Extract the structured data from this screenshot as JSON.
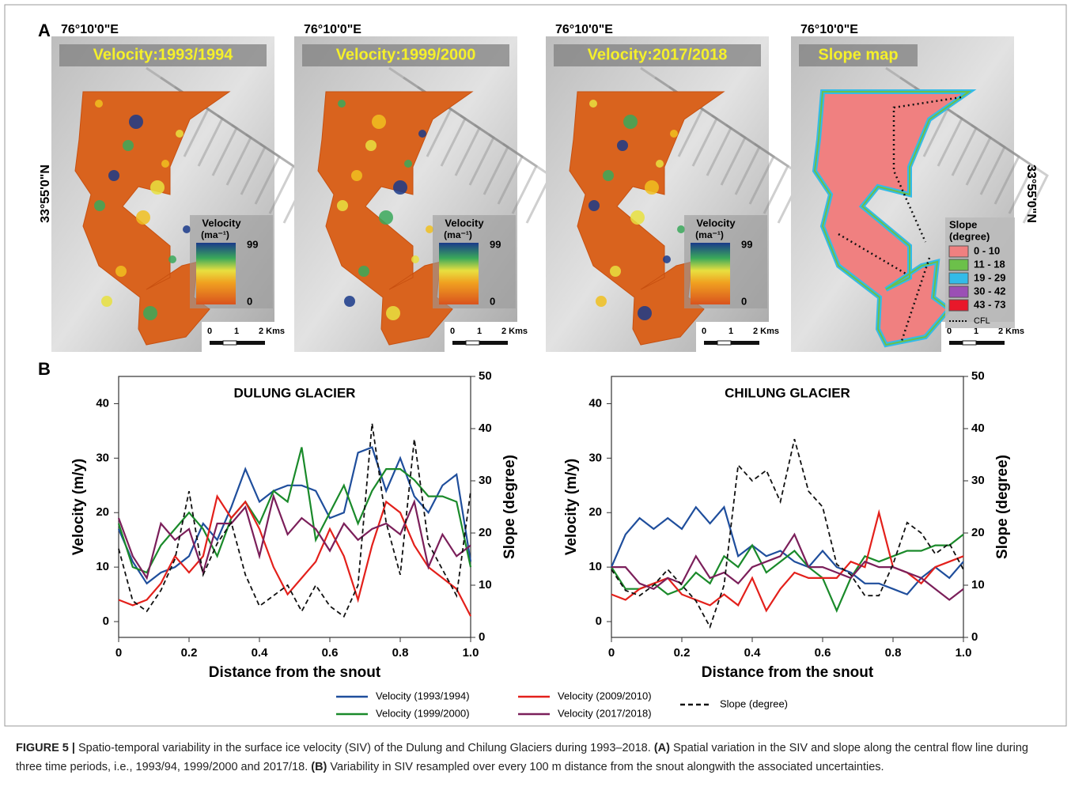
{
  "panel_a": {
    "label": "A",
    "lat_label": "33°55'0\"N",
    "maps": [
      {
        "lon_label": "76°10'0\"E",
        "title": "Velocity:1993/1994"
      },
      {
        "lon_label": "76°10'0\"E",
        "title": "Velocity:1999/2000"
      },
      {
        "lon_label": "76°10'0\"E",
        "title": "Velocity:2017/2018"
      },
      {
        "lon_label": "76°10'0\"E",
        "title": "Slope map"
      }
    ],
    "velocity_legend": {
      "title": "Velocity",
      "unit": "(ma⁻¹)",
      "max": 99,
      "min": 0
    },
    "scale_bar": {
      "start": 0,
      "mid": 1,
      "end": "2 Kms"
    },
    "slope_legend": {
      "title": "Slope",
      "unit": "(degree)",
      "classes": [
        {
          "label": "0 - 10",
          "color": "#f08080"
        },
        {
          "label": "11 - 18",
          "color": "#6cc04a"
        },
        {
          "label": "19 - 29",
          "color": "#33bbe8"
        },
        {
          "label": "30 - 42",
          "color": "#9b4fb5"
        },
        {
          "label": "43 - 73",
          "color": "#e8182a"
        }
      ],
      "cfl": "CFL"
    }
  },
  "panel_b": {
    "label": "B"
  },
  "chart_data": [
    {
      "type": "line",
      "title": "DULUNG GLACIER",
      "xlabel": "Distance from the snout",
      "ylabel": "Velocity (m/y)",
      "y2label": "Slope (degree)",
      "xlim": [
        0,
        1
      ],
      "xticks": [
        0,
        0.2,
        0.4,
        0.6,
        0.8,
        {
          "value": 1,
          "label": "1.0"
        }
      ],
      "ylim": [
        -2.9,
        45
      ],
      "yticks": [
        0,
        10,
        20,
        30,
        40
      ],
      "y2lim": [
        0,
        50
      ],
      "y2ticks": [
        0,
        10,
        20,
        30,
        40,
        50
      ],
      "x": [
        0,
        0.04,
        0.08,
        0.12,
        0.16,
        0.2,
        0.24,
        0.28,
        0.32,
        0.36,
        0.4,
        0.44,
        0.48,
        0.52,
        0.56,
        0.6,
        0.64,
        0.68,
        0.72,
        0.76,
        0.8,
        0.84,
        0.88,
        0.92,
        0.96,
        1
      ],
      "series": [
        {
          "name": "Velocity (1993/1994)",
          "color": "#1f4e9c",
          "values": [
            17,
            11,
            7,
            9,
            10,
            12,
            18,
            15,
            21,
            28,
            22,
            24,
            25,
            25,
            24,
            19,
            20,
            31,
            32,
            24,
            30,
            23,
            20,
            25,
            27,
            11
          ]
        },
        {
          "name": "Velocity (1999/2000)",
          "color": "#1a8a2a",
          "values": [
            18,
            10,
            9,
            14,
            17,
            20,
            17,
            12,
            19,
            22,
            18,
            24,
            22,
            32,
            15,
            20,
            25,
            18,
            24,
            28,
            28,
            26,
            23,
            23,
            22,
            10
          ]
        },
        {
          "name": "Velocity (2009/2010)",
          "color": "#e3201b",
          "values": [
            4,
            3,
            4,
            7,
            12,
            9,
            12,
            23,
            19,
            22,
            17,
            10,
            5,
            8,
            11,
            17,
            12,
            4,
            14,
            22,
            20,
            14,
            10,
            8,
            6,
            1
          ]
        },
        {
          "name": "Velocity (2017/2018)",
          "color": "#7b1f5a",
          "values": [
            19,
            12,
            8,
            18,
            15,
            17,
            9,
            18,
            18,
            21,
            12,
            23,
            16,
            19,
            17,
            13,
            18,
            15,
            17,
            18,
            16,
            22,
            10,
            16,
            12,
            14
          ]
        },
        {
          "name": "Slope (degree)",
          "color": "#111111",
          "axis": "y2",
          "dashed": true,
          "values": [
            17,
            7,
            5,
            9,
            15,
            28,
            12,
            18,
            22,
            12,
            6,
            8,
            10,
            5,
            10,
            6,
            4,
            10,
            41,
            22,
            12,
            38,
            18,
            13,
            8,
            28
          ]
        }
      ]
    },
    {
      "type": "line",
      "title": "CHILUNG GLACIER",
      "xlabel": "Distance from the snout",
      "ylabel": "Velocity (m/y)",
      "y2label": "Slope (degree)",
      "xlim": [
        0,
        1
      ],
      "xticks": [
        0,
        0.2,
        0.4,
        0.6,
        0.8,
        {
          "value": 1,
          "label": "1.0"
        }
      ],
      "ylim": [
        -2.9,
        45
      ],
      "yticks": [
        0,
        10,
        20,
        30,
        40
      ],
      "y2lim": [
        0,
        50
      ],
      "y2ticks": [
        0,
        10,
        20,
        30,
        40,
        50
      ],
      "x": [
        0,
        0.04,
        0.08,
        0.12,
        0.16,
        0.2,
        0.24,
        0.28,
        0.32,
        0.36,
        0.4,
        0.44,
        0.48,
        0.52,
        0.56,
        0.6,
        0.64,
        0.68,
        0.72,
        0.76,
        0.8,
        0.84,
        0.88,
        0.92,
        0.96,
        1
      ],
      "series": [
        {
          "color": "#1f4e9c",
          "values": [
            10,
            16,
            19,
            17,
            19,
            17,
            21,
            18,
            21,
            12,
            14,
            12,
            13,
            11,
            10,
            13,
            10,
            9,
            7,
            7,
            6,
            5,
            8,
            10,
            8,
            11
          ]
        },
        {
          "color": "#1a8a2a",
          "values": [
            10,
            6,
            6,
            7,
            5,
            6,
            9,
            7,
            12,
            10,
            14,
            9,
            11,
            13,
            10,
            8,
            2,
            8,
            12,
            11,
            12,
            13,
            13,
            14,
            14,
            16
          ]
        },
        {
          "color": "#e3201b",
          "values": [
            5,
            4,
            6,
            7,
            8,
            5,
            4,
            3,
            5,
            3,
            8,
            2,
            6,
            9,
            8,
            8,
            8,
            11,
            10,
            20,
            10,
            9,
            7,
            10,
            11,
            12
          ]
        },
        {
          "color": "#7b1f5a",
          "values": [
            10,
            10,
            7,
            6,
            8,
            7,
            12,
            8,
            9,
            7,
            10,
            11,
            12,
            16,
            10,
            10,
            9,
            8,
            11,
            10,
            10,
            9,
            8,
            6,
            4,
            6
          ]
        },
        {
          "color": "#111111",
          "axis": "y2",
          "dashed": true,
          "values": [
            13,
            9,
            8,
            10,
            13,
            10,
            7,
            2,
            10,
            33,
            30,
            32,
            26,
            38,
            28,
            25,
            14,
            12,
            8,
            8,
            14,
            22,
            20,
            16,
            18,
            13
          ]
        }
      ]
    }
  ],
  "caption": {
    "label": "FIGURE 5 |",
    "text_1": " Spatio-temporal variability in the surface ice velocity (SIV) of the Dulung and Chilung Glaciers during 1993–2018. ",
    "label_a": "(A)",
    "text_2": " Spatial variation in the SIV and slope along the central flow line during three time periods, i.e., 1993/94, 1999/2000 and 2017/18. ",
    "label_b": "(B)",
    "text_3": " Variability in SIV resampled over every 100 m distance from the snout alongwith the associated uncertainties."
  }
}
